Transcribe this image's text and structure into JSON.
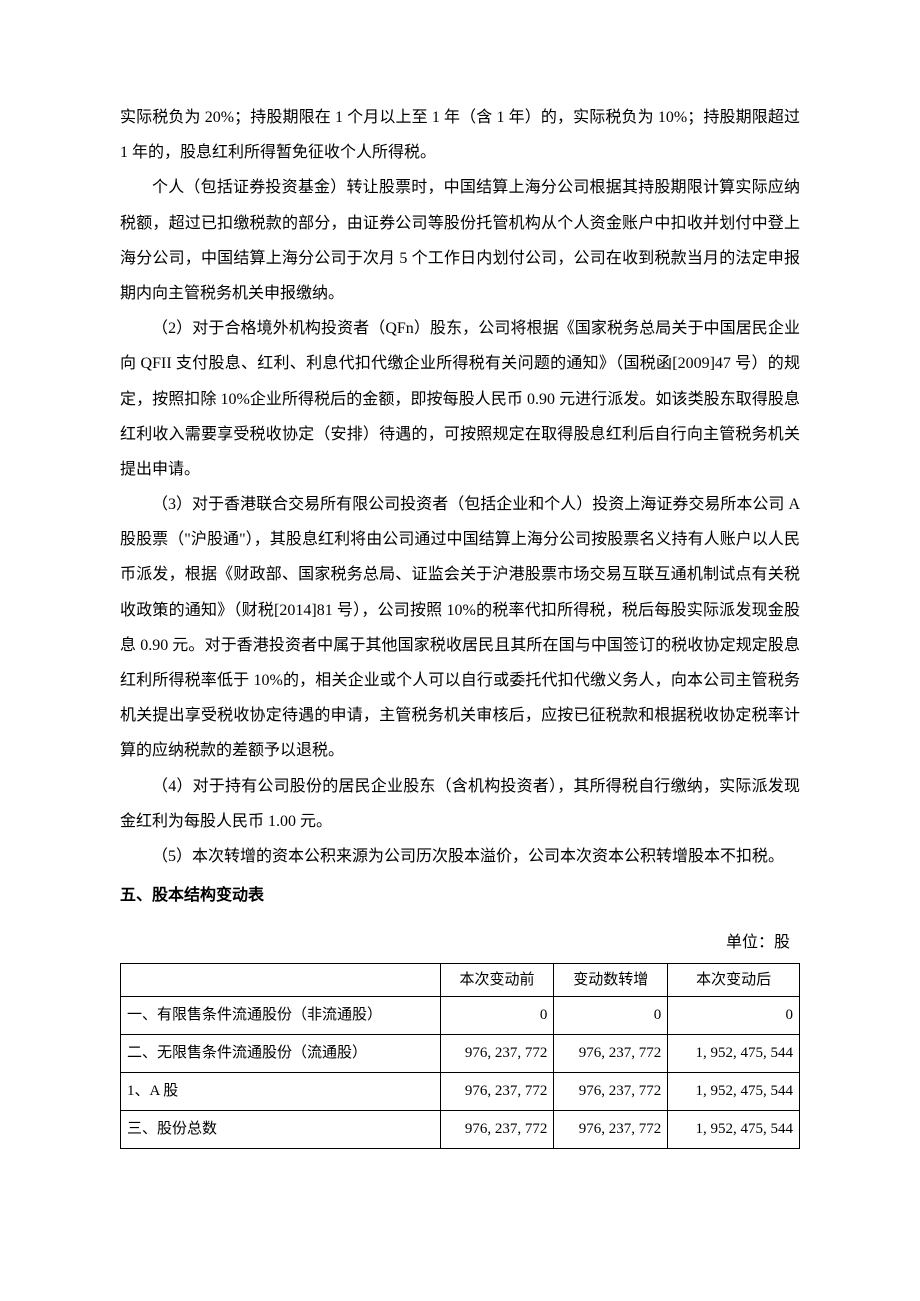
{
  "paragraphs": {
    "p1": "实际税负为 20%；持股期限在 1 个月以上至 1 年（含 1 年）的，实际税负为 10%；持股期限超过 1 年的，股息红利所得暂免征收个人所得税。",
    "p2": "个人（包括证券投资基金）转让股票时，中国结算上海分公司根据其持股期限计算实际应纳税额，超过已扣缴税款的部分，由证券公司等股份托管机构从个人资金账户中扣收并划付中登上海分公司，中国结算上海分公司于次月 5 个工作日内划付公司，公司在收到税款当月的法定申报期内向主管税务机关申报缴纳。",
    "p3": "（2）对于合格境外机构投资者（QFn）股东，公司将根据《国家税务总局关于中国居民企业向 QFII 支付股息、红利、利息代扣代缴企业所得税有关问题的通知》（国税函[2009]47 号）的规定，按照扣除 10%企业所得税后的金额，即按每股人民币 0.90 元进行派发。如该类股东取得股息红利收入需要享受税收协定（安排）待遇的，可按照规定在取得股息红利后自行向主管税务机关提出申请。",
    "p4": "（3）对于香港联合交易所有限公司投资者（包括企业和个人）投资上海证券交易所本公司 A 股股票（\"沪股通\"），其股息红利将由公司通过中国结算上海分公司按股票名义持有人账户以人民币派发，根据《财政部、国家税务总局、证监会关于沪港股票市场交易互联互通机制试点有关税收政策的通知》（财税[2014]81 号），公司按照 10%的税率代扣所得税，税后每股实际派发现金股息 0.90 元。对于香港投资者中属于其他国家税收居民且其所在国与中国签订的税收协定规定股息红利所得税率低于 10%的，相关企业或个人可以自行或委托代扣代缴义务人，向本公司主管税务机关提出享受税收协定待遇的申请，主管税务机关审核后，应按已征税款和根据税收协定税率计算的应纳税款的差额予以退税。",
    "p5": "（4）对于持有公司股份的居民企业股东（含机构投资者），其所得税自行缴纳，实际派发现金红利为每股人民币 1.00 元。",
    "p6": "（5）本次转增的资本公积来源为公司历次股本溢价，公司本次资本公积转增股本不扣税。"
  },
  "section_heading": "五、股本结构变动表",
  "table": {
    "unit_label": "单位：股",
    "headers": {
      "col1": "",
      "col2": "本次变动前",
      "col3": "变动数转增",
      "col4": "本次变动后"
    },
    "rows": [
      {
        "label": "一、有限售条件流通股份（非流通股）",
        "before": "0",
        "change": "0",
        "after": "0"
      },
      {
        "label": "二、无限售条件流通股份（流通股）",
        "before": "976, 237, 772",
        "change": "976, 237, 772",
        "after": "1, 952, 475, 544"
      },
      {
        "label": "1、A 股",
        "before": "976, 237, 772",
        "change": "976, 237, 772",
        "after": "1, 952, 475, 544"
      },
      {
        "label": "三、股份总数",
        "before": "976, 237, 772",
        "change": "976, 237, 772",
        "after": "1, 952, 475, 544"
      }
    ],
    "column_widths": [
      "40%",
      "18%",
      "18%",
      "24%"
    ]
  }
}
